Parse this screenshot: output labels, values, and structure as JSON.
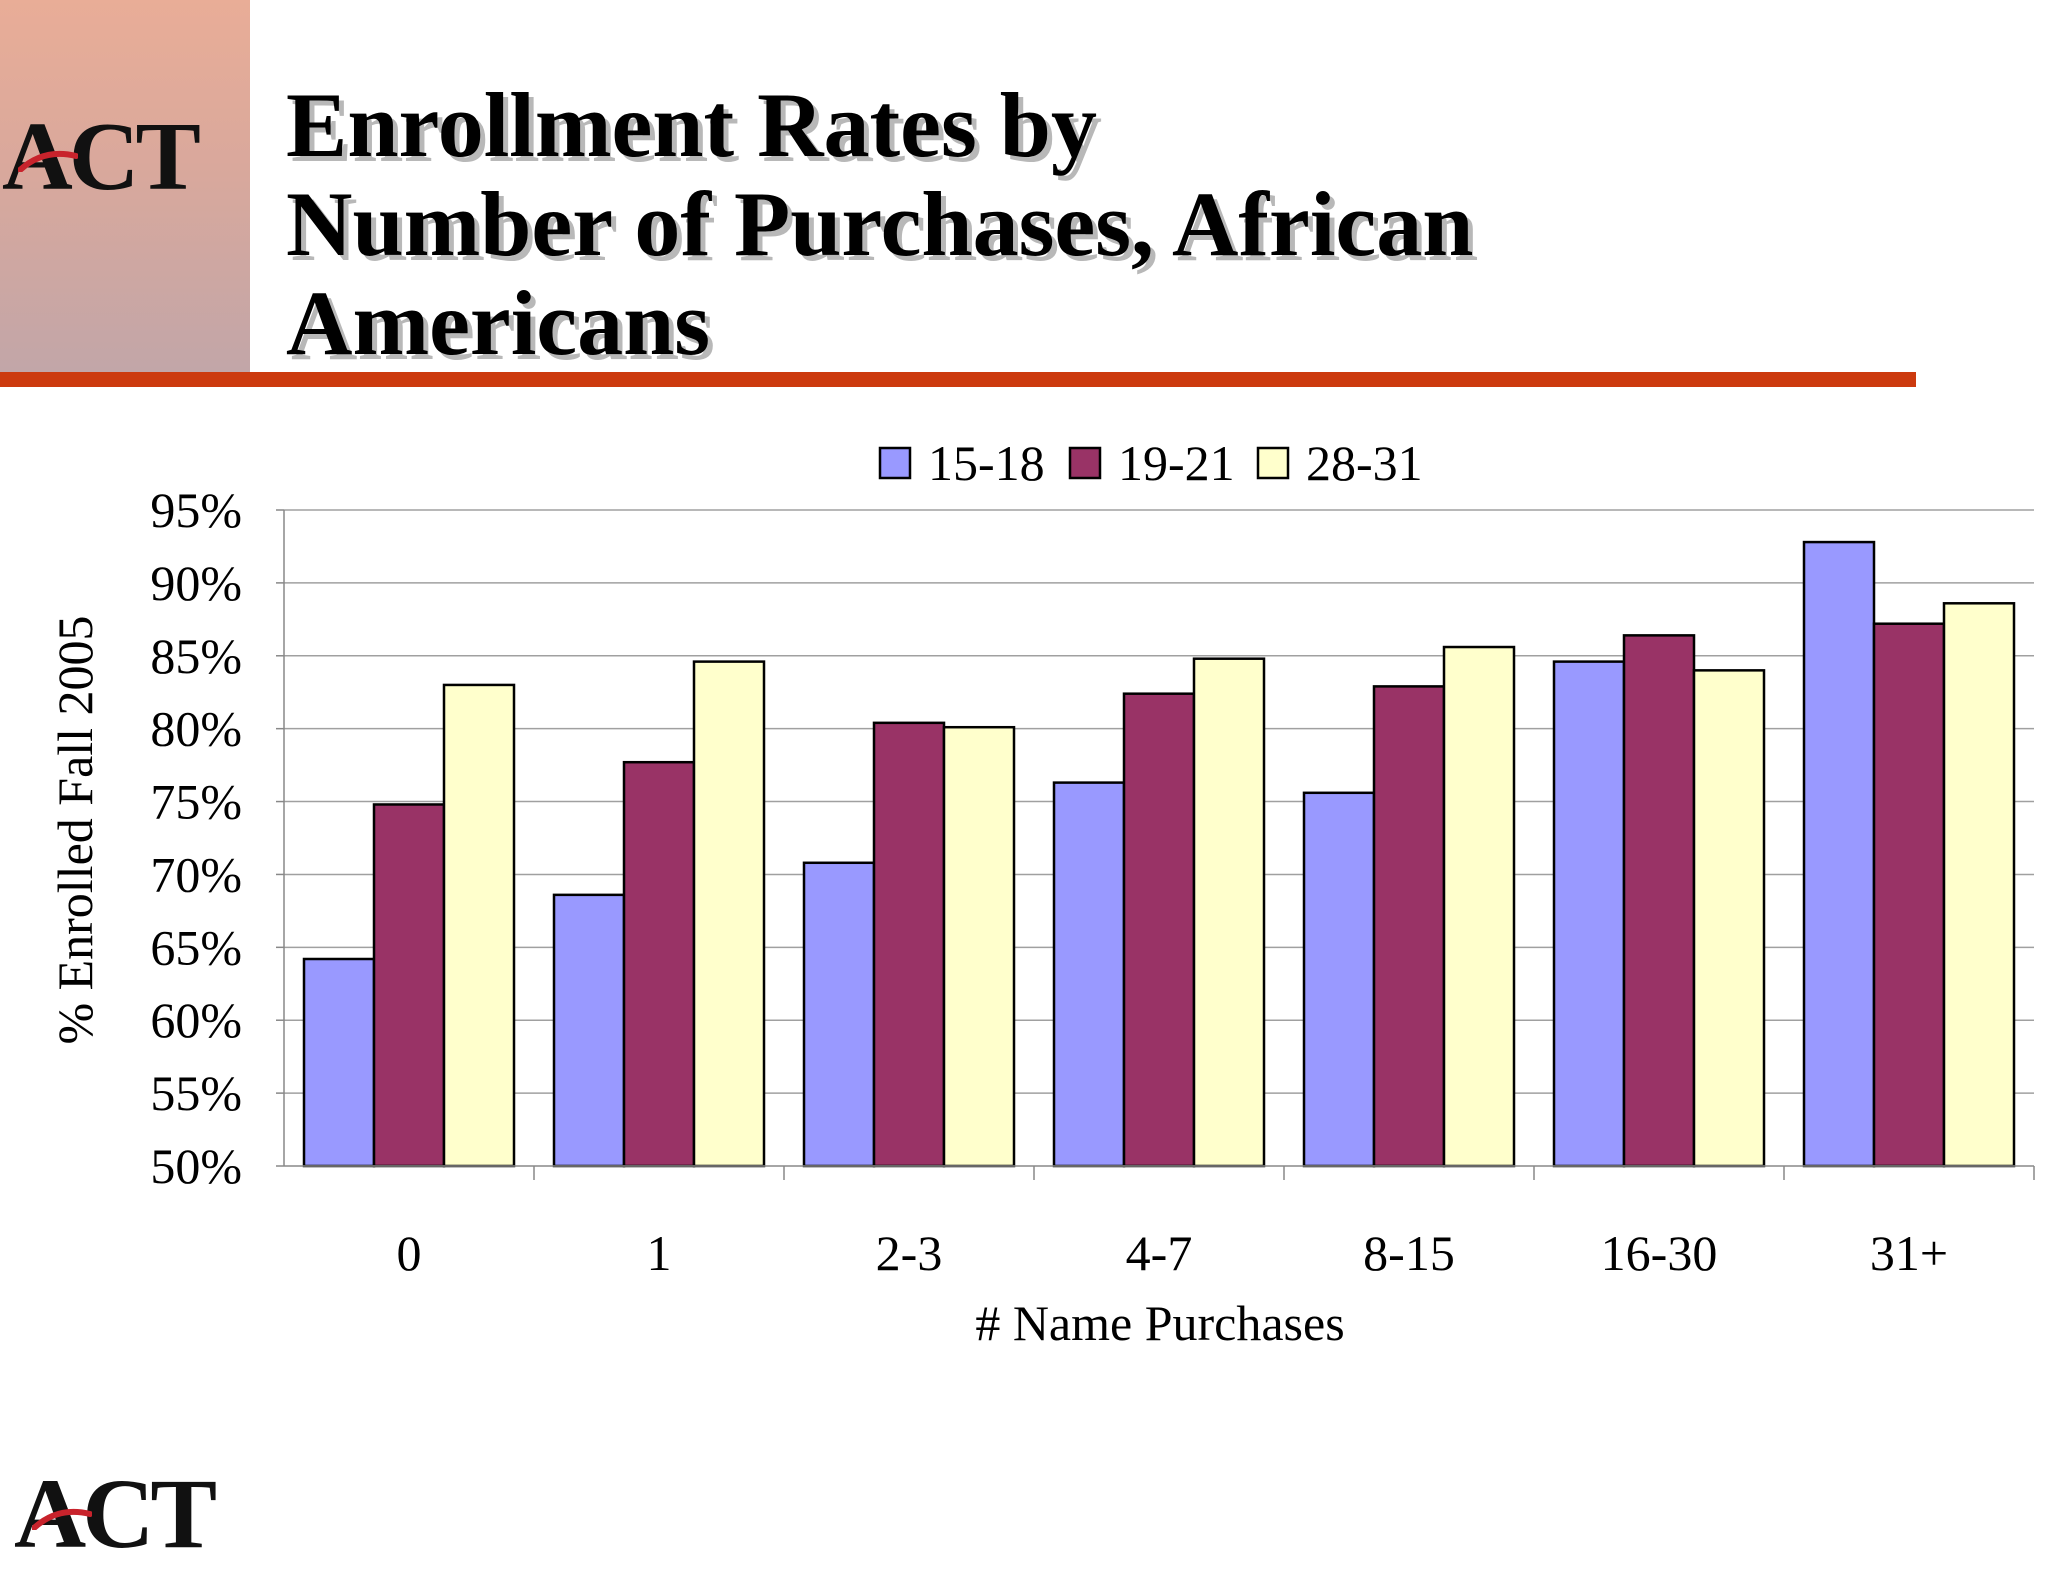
{
  "logo": {
    "text": "ACT"
  },
  "slide": {
    "title_lines": [
      "Enrollment Rates by",
      "Number of Purchases, African",
      "Americans"
    ]
  },
  "colors": {
    "accent_rule": "#cc3a0e",
    "series": [
      "#9999ff",
      "#993366",
      "#ffffcc"
    ]
  },
  "chart_data": {
    "type": "bar",
    "xlabel": "# Name Purchases",
    "ylabel": "% Enrolled Fall 2005",
    "categories": [
      "0",
      "1",
      "2-3",
      "4-7",
      "8-15",
      "16-30",
      "31+"
    ],
    "yticks": [
      "50%",
      "55%",
      "60%",
      "65%",
      "70%",
      "75%",
      "80%",
      "85%",
      "90%",
      "95%"
    ],
    "ylim": [
      50,
      95
    ],
    "grid": true,
    "legend_position": "top",
    "series": [
      {
        "name": "15-18",
        "color": "#9999ff",
        "values": [
          64.2,
          68.6,
          70.8,
          76.3,
          75.6,
          84.6,
          92.8
        ]
      },
      {
        "name": "19-21",
        "color": "#993366",
        "values": [
          74.8,
          77.7,
          80.4,
          82.4,
          82.9,
          86.4,
          87.2
        ]
      },
      {
        "name": "28-31",
        "color": "#ffffcc",
        "values": [
          83.0,
          84.6,
          80.1,
          84.8,
          85.6,
          84.0,
          88.6
        ]
      }
    ]
  }
}
